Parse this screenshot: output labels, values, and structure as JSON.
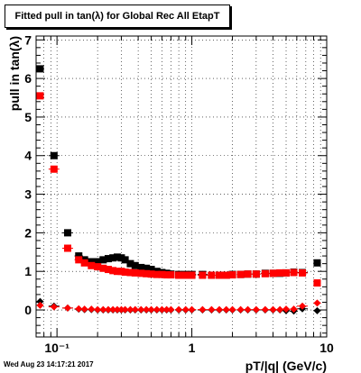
{
  "title": "Fitted pull in tan(λ) for Global Rec All EtapT",
  "timestamp": "Wed Aug 23 14:17:21 2017",
  "chart_data": {
    "type": "scatter",
    "title": "Fitted pull in tan(λ) for Global Rec All EtapT",
    "xlabel": "pT/|q| (GeV/c)",
    "ylabel": "pull in tan(λ)",
    "x_scale": "log",
    "xlim": [
      0.07,
      10
    ],
    "ylim": [
      -0.7,
      7.1
    ],
    "x_ticks": [
      {
        "v": 0.1,
        "label": "10⁻¹"
      },
      {
        "v": 1,
        "label": "1"
      },
      {
        "v": 10,
        "label": "10"
      }
    ],
    "y_ticks": [
      0,
      1,
      2,
      3,
      4,
      5,
      6,
      7
    ],
    "y_tick_labels": [
      "0",
      "1",
      "2",
      "3",
      "4",
      "5",
      "6",
      "7"
    ],
    "grid": true,
    "series": [
      {
        "color": "#000000",
        "marker": "square",
        "x": [
          0.075,
          0.095,
          0.12,
          0.145,
          0.16,
          0.18,
          0.2,
          0.22,
          0.24,
          0.26,
          0.28,
          0.3,
          0.32,
          0.35,
          0.38,
          0.42,
          0.46,
          0.5,
          0.55,
          0.6,
          0.65,
          0.7,
          0.8,
          0.9,
          1.0,
          1.2,
          1.4,
          1.6,
          1.8,
          2.0,
          2.3,
          2.6,
          3.0,
          3.5,
          4.0,
          4.5,
          5.0,
          5.7,
          6.6,
          8.5
        ],
        "y": [
          6.25,
          4.0,
          2.0,
          1.4,
          1.3,
          1.25,
          1.25,
          1.3,
          1.33,
          1.35,
          1.37,
          1.35,
          1.3,
          1.2,
          1.15,
          1.1,
          1.08,
          1.05,
          1.0,
          0.97,
          0.95,
          0.93,
          0.92,
          0.92,
          0.92,
          0.92,
          0.9,
          0.9,
          0.9,
          0.92,
          0.92,
          0.93,
          0.93,
          0.95,
          0.95,
          0.95,
          0.96,
          0.98,
          0.97,
          1.22
        ]
      },
      {
        "color": "#ff0000",
        "marker": "square",
        "x": [
          0.075,
          0.095,
          0.12,
          0.145,
          0.16,
          0.18,
          0.2,
          0.22,
          0.24,
          0.26,
          0.28,
          0.3,
          0.32,
          0.35,
          0.38,
          0.42,
          0.46,
          0.5,
          0.55,
          0.6,
          0.65,
          0.7,
          0.8,
          0.9,
          1.0,
          1.2,
          1.4,
          1.6,
          1.8,
          2.0,
          2.3,
          2.6,
          3.0,
          3.5,
          4.0,
          4.5,
          5.0,
          5.7,
          6.6,
          8.5
        ],
        "y": [
          5.55,
          3.65,
          1.6,
          1.3,
          1.22,
          1.15,
          1.12,
          1.08,
          1.05,
          1.02,
          1.0,
          1.0,
          0.98,
          0.97,
          0.96,
          0.95,
          0.94,
          0.93,
          0.92,
          0.92,
          0.91,
          0.91,
          0.9,
          0.9,
          0.9,
          0.9,
          0.9,
          0.9,
          0.9,
          0.91,
          0.92,
          0.93,
          0.93,
          0.94,
          0.95,
          0.96,
          0.96,
          0.97,
          0.96,
          0.7
        ]
      },
      {
        "color": "#000000",
        "marker": "diamond",
        "x": [
          0.075,
          0.095,
          0.12,
          0.145,
          0.16,
          0.18,
          0.2,
          0.22,
          0.24,
          0.26,
          0.28,
          0.3,
          0.32,
          0.35,
          0.38,
          0.42,
          0.46,
          0.5,
          0.55,
          0.6,
          0.65,
          0.7,
          0.8,
          0.9,
          1.0,
          1.2,
          1.4,
          1.6,
          1.8,
          2.0,
          2.3,
          2.6,
          3.0,
          3.5,
          4.0,
          4.5,
          5.0,
          5.7,
          6.6,
          8.5
        ],
        "y": [
          0.22,
          0.1,
          0.05,
          0.02,
          0.01,
          0.01,
          0.0,
          0.0,
          0.0,
          0.0,
          0.0,
          0.0,
          0.0,
          0.0,
          0.0,
          0.0,
          0.0,
          0.0,
          0.0,
          0.0,
          0.0,
          0.0,
          0.0,
          0.0,
          0.0,
          0.0,
          0.0,
          0.0,
          0.0,
          0.0,
          0.0,
          0.0,
          0.0,
          0.0,
          0.0,
          0.0,
          -0.02,
          -0.03,
          0.03,
          -0.02
        ]
      },
      {
        "color": "#ff0000",
        "marker": "diamond",
        "x": [
          0.075,
          0.095,
          0.12,
          0.145,
          0.16,
          0.18,
          0.2,
          0.22,
          0.24,
          0.26,
          0.28,
          0.3,
          0.32,
          0.35,
          0.38,
          0.42,
          0.46,
          0.5,
          0.55,
          0.6,
          0.65,
          0.7,
          0.8,
          0.9,
          1.0,
          1.2,
          1.4,
          1.6,
          1.8,
          2.0,
          2.3,
          2.6,
          3.0,
          3.5,
          4.0,
          4.5,
          5.0,
          5.7,
          6.6,
          8.5
        ],
        "y": [
          0.12,
          0.08,
          0.05,
          0.03,
          0.02,
          0.02,
          0.01,
          0.01,
          0.01,
          0.01,
          0.01,
          0.01,
          0.01,
          0.01,
          0.01,
          0.01,
          0.01,
          0.01,
          0.01,
          0.01,
          0.01,
          0.01,
          0.01,
          0.01,
          0.01,
          0.01,
          0.01,
          0.01,
          0.01,
          0.01,
          0.01,
          0.01,
          0.01,
          0.01,
          0.01,
          0.01,
          0.02,
          0.02,
          0.1,
          0.18
        ]
      }
    ]
  }
}
